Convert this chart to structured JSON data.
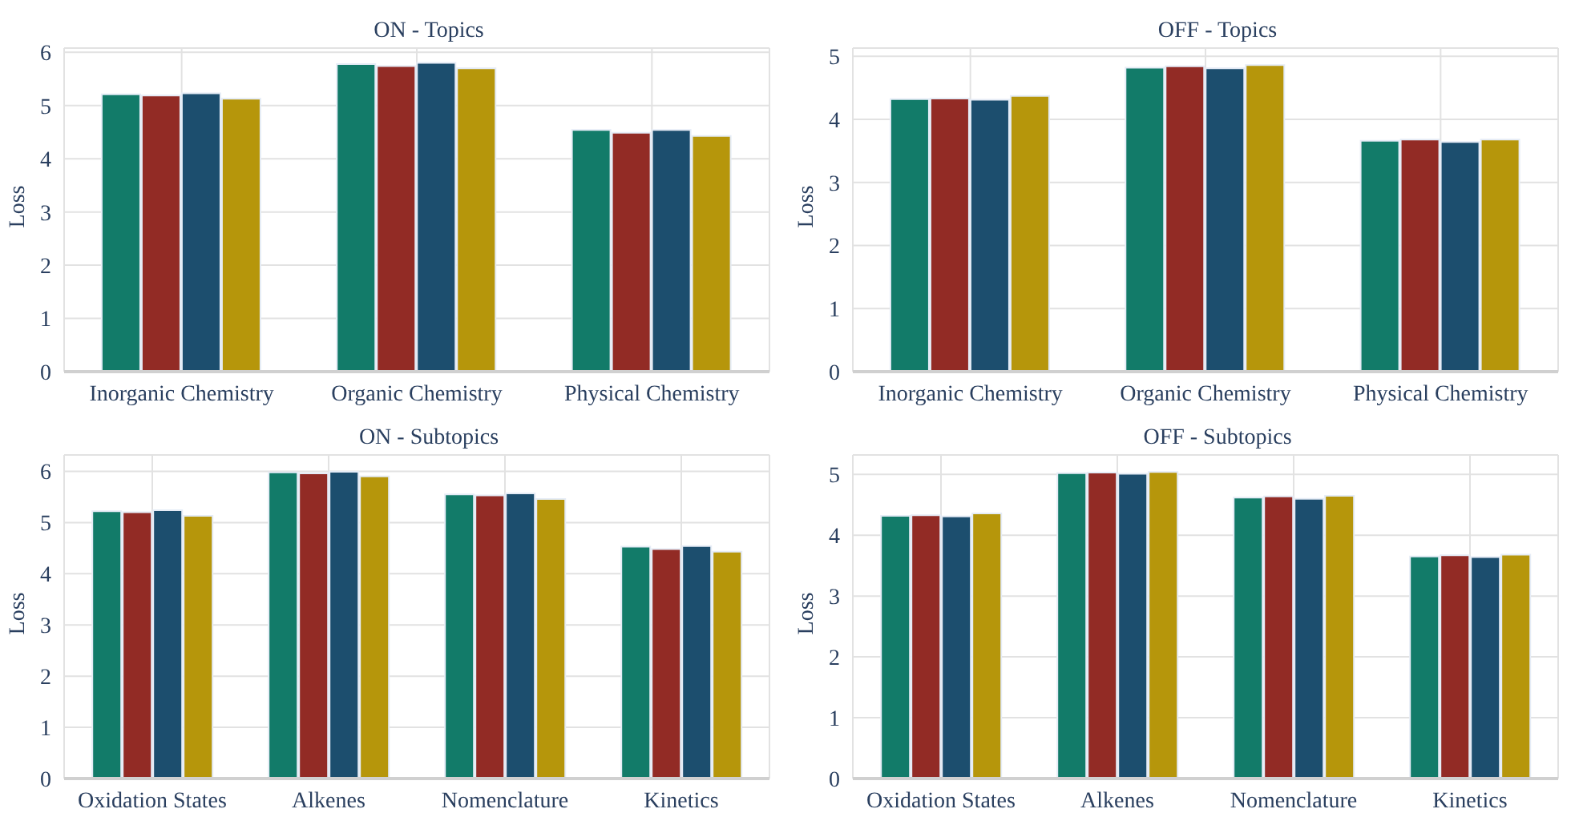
{
  "chart_data": [
    {
      "type": "bar",
      "title": "ON - Topics",
      "ylabel": "Loss",
      "categories": [
        "Inorganic Chemistry",
        "Organic Chemistry",
        "Physical Chemistry"
      ],
      "ylim": [
        0,
        6.08
      ],
      "yticks": [
        0,
        1,
        2,
        3,
        4,
        5,
        6
      ],
      "grid": true,
      "series": [
        {
          "color": "#127b69",
          "values": [
            5.21,
            5.78,
            4.54
          ]
        },
        {
          "color": "#922b25",
          "values": [
            5.19,
            5.74,
            4.49
          ]
        },
        {
          "color": "#1c4e6e",
          "values": [
            5.23,
            5.8,
            4.54
          ]
        },
        {
          "color": "#b6960b",
          "values": [
            5.13,
            5.7,
            4.43
          ]
        }
      ]
    },
    {
      "type": "bar",
      "title": "OFF - Topics",
      "ylabel": "Loss",
      "categories": [
        "Inorganic Chemistry",
        "Organic Chemistry",
        "Physical Chemistry"
      ],
      "ylim": [
        0,
        5.13
      ],
      "yticks": [
        0,
        1,
        2,
        3,
        4,
        5
      ],
      "grid": true,
      "series": [
        {
          "color": "#127b69",
          "values": [
            4.32,
            4.82,
            3.66
          ]
        },
        {
          "color": "#922b25",
          "values": [
            4.33,
            4.84,
            3.68
          ]
        },
        {
          "color": "#1c4e6e",
          "values": [
            4.31,
            4.81,
            3.64
          ]
        },
        {
          "color": "#b6960b",
          "values": [
            4.37,
            4.86,
            3.68
          ]
        }
      ]
    },
    {
      "type": "bar",
      "title": "ON - Subtopics",
      "ylabel": "Loss",
      "categories": [
        "Oxidation States",
        "Alkenes",
        "Nomenclature",
        "Kinetics"
      ],
      "ylim": [
        0,
        6.32
      ],
      "yticks": [
        0,
        1,
        2,
        3,
        4,
        5,
        6
      ],
      "grid": true,
      "series": [
        {
          "color": "#127b69",
          "values": [
            5.22,
            5.98,
            5.55,
            4.53
          ]
        },
        {
          "color": "#922b25",
          "values": [
            5.2,
            5.96,
            5.53,
            4.48
          ]
        },
        {
          "color": "#1c4e6e",
          "values": [
            5.24,
            5.99,
            5.57,
            4.54
          ]
        },
        {
          "color": "#b6960b",
          "values": [
            5.13,
            5.9,
            5.46,
            4.43
          ]
        }
      ]
    },
    {
      "type": "bar",
      "title": "OFF - Subtopics",
      "ylabel": "Loss",
      "categories": [
        "Oxidation States",
        "Alkenes",
        "Nomenclature",
        "Kinetics"
      ],
      "ylim": [
        0,
        5.32
      ],
      "yticks": [
        0,
        1,
        2,
        3,
        4,
        5
      ],
      "grid": true,
      "series": [
        {
          "color": "#127b69",
          "values": [
            4.32,
            5.02,
            4.62,
            3.65
          ]
        },
        {
          "color": "#922b25",
          "values": [
            4.33,
            5.03,
            4.64,
            3.67
          ]
        },
        {
          "color": "#1c4e6e",
          "values": [
            4.31,
            5.01,
            4.6,
            3.64
          ]
        },
        {
          "color": "#b6960b",
          "values": [
            4.36,
            5.04,
            4.65,
            3.68
          ]
        }
      ]
    }
  ]
}
